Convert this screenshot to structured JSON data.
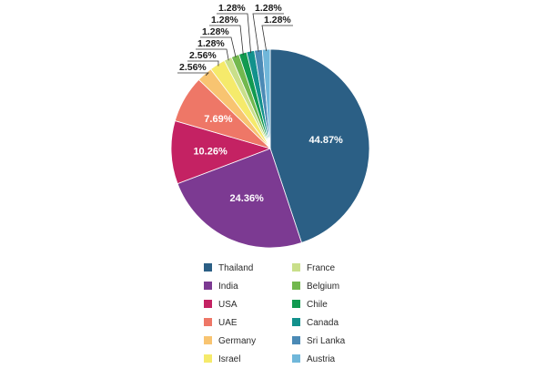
{
  "chart_data": {
    "type": "pie",
    "title": "",
    "categories": [
      "Thailand",
      "India",
      "USA",
      "UAE",
      "Germany",
      "Israel",
      "France",
      "Belgium",
      "Chile",
      "Canada",
      "Sri Lanka",
      "Austria"
    ],
    "values": [
      44.87,
      24.36,
      10.26,
      7.69,
      2.56,
      2.56,
      1.28,
      1.28,
      1.28,
      1.28,
      1.28,
      1.28
    ],
    "value_labels": [
      "44.87%",
      "24.36%",
      "10.26%",
      "7.69%",
      "2.56%",
      "2.56%",
      "1.28%",
      "1.28%",
      "1.28%",
      "1.28%",
      "1.28%",
      "1.28%"
    ],
    "colors": [
      "#2b5f85",
      "#7c3a92",
      "#c42263",
      "#ee7767",
      "#f8c471",
      "#f5ea6b",
      "#c9df8a",
      "#72b84e",
      "#119a50",
      "#12918c",
      "#4b8ab6",
      "#70b7da"
    ],
    "legend_position": "bottom"
  }
}
